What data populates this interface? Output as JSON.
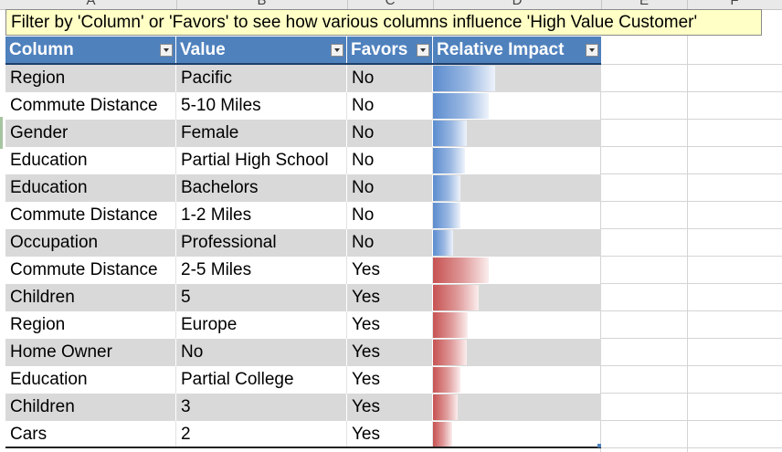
{
  "column_headers": [
    "A",
    "B",
    "C",
    "D",
    "E",
    "F"
  ],
  "banner": {
    "text": "Filter by 'Column' or 'Favors' to see how various columns influence 'High Value Customer'"
  },
  "table": {
    "headers": {
      "column": "Column",
      "value": "Value",
      "favors": "Favors",
      "impact": "Relative Impact"
    },
    "rows": [
      {
        "column": "Region",
        "value": "Pacific",
        "favors": "No",
        "impact": 0.55
      },
      {
        "column": "Commute Distance",
        "value": "5-10 Miles",
        "favors": "No",
        "impact": 0.49
      },
      {
        "column": "Gender",
        "value": "Female",
        "favors": "No",
        "impact": 0.3
      },
      {
        "column": "Education",
        "value": "Partial High School",
        "favors": "No",
        "impact": 0.28
      },
      {
        "column": "Education",
        "value": "Bachelors",
        "favors": "No",
        "impact": 0.24
      },
      {
        "column": "Commute Distance",
        "value": "1-2 Miles",
        "favors": "No",
        "impact": 0.24
      },
      {
        "column": "Occupation",
        "value": "Professional",
        "favors": "No",
        "impact": 0.18
      },
      {
        "column": "Commute Distance",
        "value": "2-5 Miles",
        "favors": "Yes",
        "impact": 0.49
      },
      {
        "column": "Children",
        "value": "5",
        "favors": "Yes",
        "impact": 0.4
      },
      {
        "column": "Region",
        "value": "Europe",
        "favors": "Yes",
        "impact": 0.31
      },
      {
        "column": "Home Owner",
        "value": "No",
        "favors": "Yes",
        "impact": 0.3
      },
      {
        "column": "Education",
        "value": "Partial College",
        "favors": "Yes",
        "impact": 0.24
      },
      {
        "column": "Children",
        "value": "3",
        "favors": "Yes",
        "impact": 0.22
      },
      {
        "column": "Cars",
        "value": "2",
        "favors": "Yes",
        "impact": 0.17
      }
    ]
  },
  "colors": {
    "header_bg": "#4f81bd",
    "banner_bg": "#ffffc6",
    "row_shade": "#d9d9d9",
    "bar_no": "#5b8ccf",
    "bar_yes": "#c75252"
  },
  "icons": {
    "filter": "dropdown-arrow-icon"
  }
}
